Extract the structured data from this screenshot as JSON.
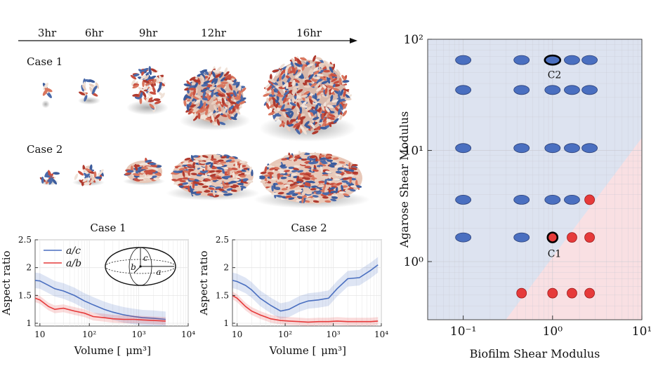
{
  "timeline": {
    "labels": [
      "3hr",
      "6hr",
      "9hr",
      "12hr",
      "16hr"
    ]
  },
  "cases": {
    "case1_label": "Case 1",
    "case2_label": "Case 2"
  },
  "colors": {
    "blue": "#4a6fc0",
    "red": "#e63a3a",
    "cell_red": "#c85040",
    "cell_blue": "#4a6aaa",
    "cell_cream": "#e8cfc0",
    "bg_blue": "#dde3f0",
    "bg_red": "#f9e0e3"
  },
  "chart_data": [
    {
      "type": "line",
      "title": "Case 1",
      "xlabel": "Volume",
      "xunit": "μm³",
      "ylabel": "Aspect ratio",
      "xscale": "log",
      "xlim": [
        8,
        10000
      ],
      "ylim": [
        0.95,
        2.5
      ],
      "xticks": [
        "10",
        "10²",
        "10³",
        "10⁴"
      ],
      "yticks": [
        "1",
        "1.5",
        "2",
        "2.5"
      ],
      "legend": [
        "a/c",
        "a/b"
      ],
      "inset_labels": [
        "c",
        "b",
        "a"
      ],
      "series": [
        {
          "name": "a/c",
          "x": [
            8,
            10,
            15,
            20,
            30,
            50,
            80,
            120,
            200,
            300,
            500,
            800,
            1200,
            2000,
            3500
          ],
          "y": [
            1.77,
            1.76,
            1.68,
            1.62,
            1.58,
            1.5,
            1.4,
            1.33,
            1.25,
            1.2,
            1.15,
            1.12,
            1.1,
            1.09,
            1.07
          ]
        },
        {
          "name": "a/b",
          "x": [
            8,
            10,
            15,
            20,
            30,
            50,
            80,
            120,
            200,
            300,
            500,
            800,
            1200,
            2000,
            3500
          ],
          "y": [
            1.45,
            1.42,
            1.3,
            1.25,
            1.27,
            1.22,
            1.18,
            1.12,
            1.1,
            1.08,
            1.07,
            1.07,
            1.06,
            1.05,
            1.04
          ]
        }
      ]
    },
    {
      "type": "line",
      "title": "Case 2",
      "xlabel": "Volume",
      "xunit": "μm³",
      "ylabel": "Aspect ratio",
      "xscale": "log",
      "xlim": [
        8,
        10000
      ],
      "ylim": [
        0.95,
        2.5
      ],
      "xticks": [
        "10",
        "10²",
        "10³",
        "10⁴"
      ],
      "yticks": [
        "1",
        "1.5",
        "2",
        "2.5"
      ],
      "series": [
        {
          "name": "a/c",
          "x": [
            8,
            10,
            15,
            20,
            30,
            50,
            80,
            120,
            200,
            300,
            500,
            800,
            1200,
            2000,
            3500,
            6000,
            8500
          ],
          "y": [
            1.77,
            1.75,
            1.68,
            1.6,
            1.45,
            1.32,
            1.22,
            1.25,
            1.35,
            1.4,
            1.42,
            1.45,
            1.62,
            1.8,
            1.82,
            1.95,
            2.05
          ]
        },
        {
          "name": "a/b",
          "x": [
            8,
            10,
            15,
            20,
            30,
            50,
            80,
            120,
            200,
            300,
            500,
            800,
            1200,
            2000,
            3500,
            6000,
            8500
          ],
          "y": [
            1.5,
            1.45,
            1.3,
            1.22,
            1.15,
            1.08,
            1.05,
            1.04,
            1.03,
            1.02,
            1.03,
            1.03,
            1.04,
            1.03,
            1.03,
            1.03,
            1.04
          ]
        }
      ]
    },
    {
      "type": "scatter",
      "xlabel": "Biofilm Shear Modulus",
      "ylabel": "Agarose Shear Modulus",
      "xscale": "log",
      "yscale": "log",
      "xlim": [
        0.04,
        10
      ],
      "ylim": [
        0.3,
        100
      ],
      "xticks": [
        "10⁻¹",
        "10⁰",
        "10¹"
      ],
      "yticks": [
        "10⁰",
        "10¹",
        "10²"
      ],
      "annotations": [
        "C2",
        "C1"
      ],
      "boundary": [
        [
          0.3,
          0.3
        ],
        [
          10,
          13
        ]
      ],
      "points": [
        {
          "x": 0.1,
          "y": 65,
          "cls": "blue"
        },
        {
          "x": 0.45,
          "y": 65,
          "cls": "blue"
        },
        {
          "x": 1.0,
          "y": 65,
          "cls": "blue",
          "highlight": "C2"
        },
        {
          "x": 1.65,
          "y": 65,
          "cls": "blue"
        },
        {
          "x": 2.6,
          "y": 65,
          "cls": "blue"
        },
        {
          "x": 0.1,
          "y": 35,
          "cls": "blue"
        },
        {
          "x": 0.45,
          "y": 35,
          "cls": "blue"
        },
        {
          "x": 1.0,
          "y": 35,
          "cls": "blue"
        },
        {
          "x": 1.65,
          "y": 35,
          "cls": "blue"
        },
        {
          "x": 2.6,
          "y": 35,
          "cls": "blue"
        },
        {
          "x": 0.1,
          "y": 10.5,
          "cls": "blue"
        },
        {
          "x": 0.45,
          "y": 10.5,
          "cls": "blue"
        },
        {
          "x": 1.0,
          "y": 10.5,
          "cls": "blue"
        },
        {
          "x": 1.65,
          "y": 10.5,
          "cls": "blue"
        },
        {
          "x": 2.6,
          "y": 10.5,
          "cls": "blue"
        },
        {
          "x": 0.1,
          "y": 3.6,
          "cls": "blue"
        },
        {
          "x": 0.45,
          "y": 3.6,
          "cls": "blue"
        },
        {
          "x": 1.0,
          "y": 3.6,
          "cls": "blue"
        },
        {
          "x": 1.65,
          "y": 3.6,
          "cls": "blue"
        },
        {
          "x": 2.6,
          "y": 3.6,
          "cls": "red"
        },
        {
          "x": 0.1,
          "y": 1.65,
          "cls": "blue"
        },
        {
          "x": 0.45,
          "y": 1.65,
          "cls": "blue"
        },
        {
          "x": 1.0,
          "y": 1.65,
          "cls": "red",
          "highlight": "C1"
        },
        {
          "x": 1.65,
          "y": 1.65,
          "cls": "red"
        },
        {
          "x": 2.6,
          "y": 1.65,
          "cls": "red"
        },
        {
          "x": 0.45,
          "y": 0.52,
          "cls": "red"
        },
        {
          "x": 1.0,
          "y": 0.52,
          "cls": "red"
        },
        {
          "x": 1.65,
          "y": 0.52,
          "cls": "red"
        },
        {
          "x": 2.6,
          "y": 0.52,
          "cls": "red"
        }
      ]
    }
  ]
}
